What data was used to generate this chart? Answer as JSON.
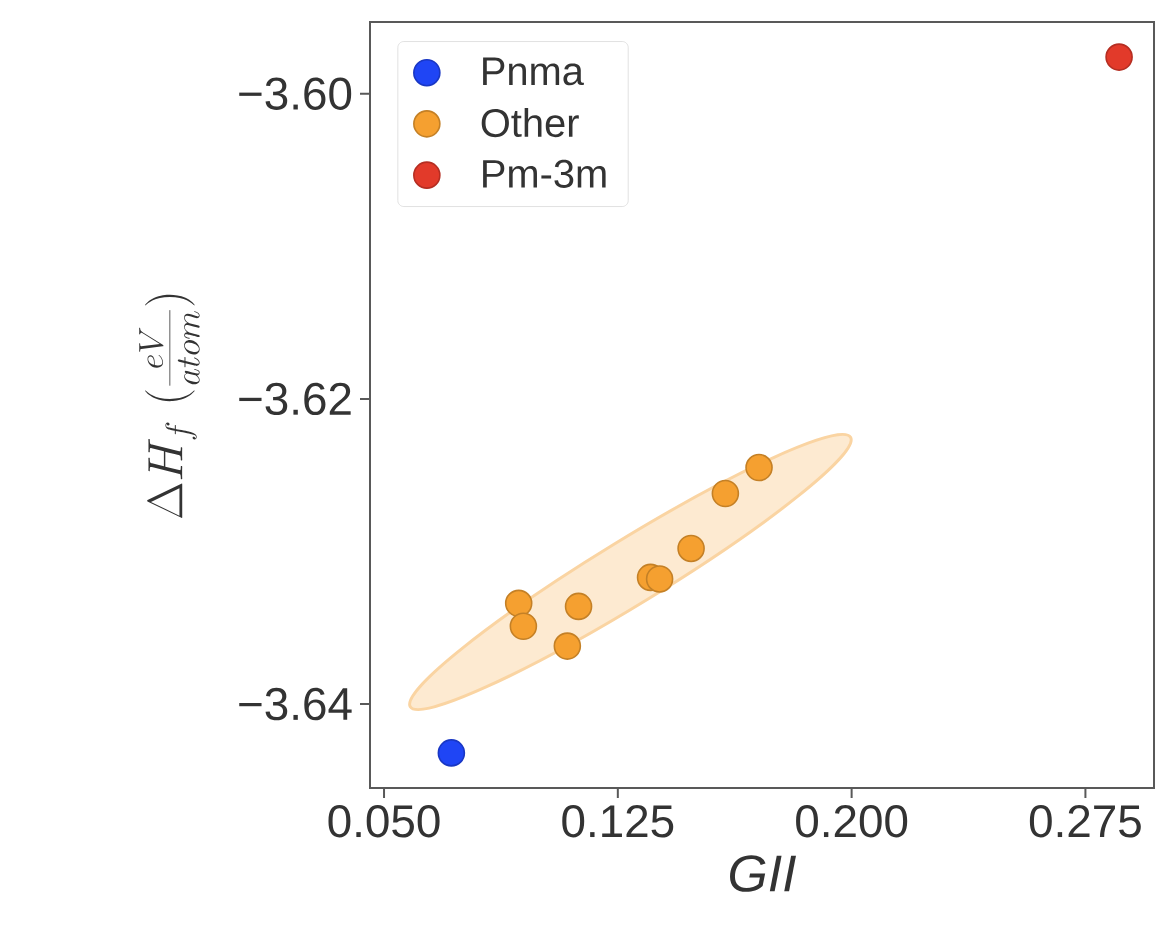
{
  "chart_data": {
    "type": "scatter",
    "xlabel": "GII",
    "ylabel": "\\Delta H_f\\ (\\frac{eV}{atom})",
    "series": [
      {
        "name": "Pnma",
        "color": "#1f45f5",
        "x": [
          0.0716
        ],
        "values": [
          -3.6432
        ]
      },
      {
        "name": "Other",
        "color": "#f5a030",
        "x": [
          0.0932,
          0.0947,
          0.1124,
          0.1088,
          0.1355,
          0.1384,
          0.1485,
          0.1595,
          0.1703
        ],
        "values": [
          -3.6334,
          -3.6349,
          -3.6336,
          -3.6362,
          -3.6317,
          -3.6318,
          -3.6298,
          -3.6262,
          -3.6245
        ]
      },
      {
        "name": "Pm-3m",
        "color": "#e23a2a",
        "x": [
          0.2858
        ],
        "values": [
          -3.5976
        ]
      }
    ],
    "xlim": [
      0.0455,
      0.297
    ],
    "ylim": [
      -3.6455,
      -3.5953
    ],
    "xticks": [
      {
        "value": 0.05,
        "label": "0.050"
      },
      0.125,
      {
        "value": 0.2,
        "label": "0.200"
      },
      0.275
    ],
    "yticks": [
      {
        "value": -3.64,
        "label": "−3.64"
      },
      {
        "value": -3.62,
        "label": "−3.62"
      },
      {
        "value": -3.6,
        "label": "−3.60"
      }
    ],
    "legend": "top left",
    "marker": "circle"
  }
}
